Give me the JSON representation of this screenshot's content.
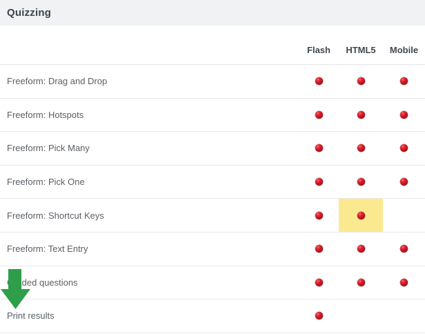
{
  "page": {
    "title": "Quizzing"
  },
  "table": {
    "columns": [
      {
        "key": "flash",
        "label": "Flash"
      },
      {
        "key": "html5",
        "label": "HTML5"
      },
      {
        "key": "mobile",
        "label": "Mobile"
      }
    ],
    "rows": [
      {
        "label": "Freeform: Drag and Drop",
        "flash": true,
        "html5": true,
        "mobile": true
      },
      {
        "label": "Freeform: Hotspots",
        "flash": true,
        "html5": true,
        "mobile": true
      },
      {
        "label": "Freeform: Pick Many",
        "flash": true,
        "html5": true,
        "mobile": true
      },
      {
        "label": "Freeform: Pick One",
        "flash": true,
        "html5": true,
        "mobile": true
      },
      {
        "label": "Freeform: Shortcut Keys",
        "flash": true,
        "html5": true,
        "mobile": false,
        "highlighted_column": "html5"
      },
      {
        "label": "Freeform: Text Entry",
        "flash": true,
        "html5": true,
        "mobile": true
      },
      {
        "label": "Graded questions",
        "flash": true,
        "html5": true,
        "mobile": true
      },
      {
        "label": "Print results",
        "flash": true,
        "html5": false,
        "mobile": false
      }
    ]
  },
  "legend": {
    "dot_meaning": "supported"
  },
  "colors": {
    "dot_red": "#c11322",
    "highlight_yellow": "#fbe98f",
    "arrow_green": "#2e9e4b",
    "title_band": "#f0f2f4",
    "divider": "#e8e8e8"
  }
}
